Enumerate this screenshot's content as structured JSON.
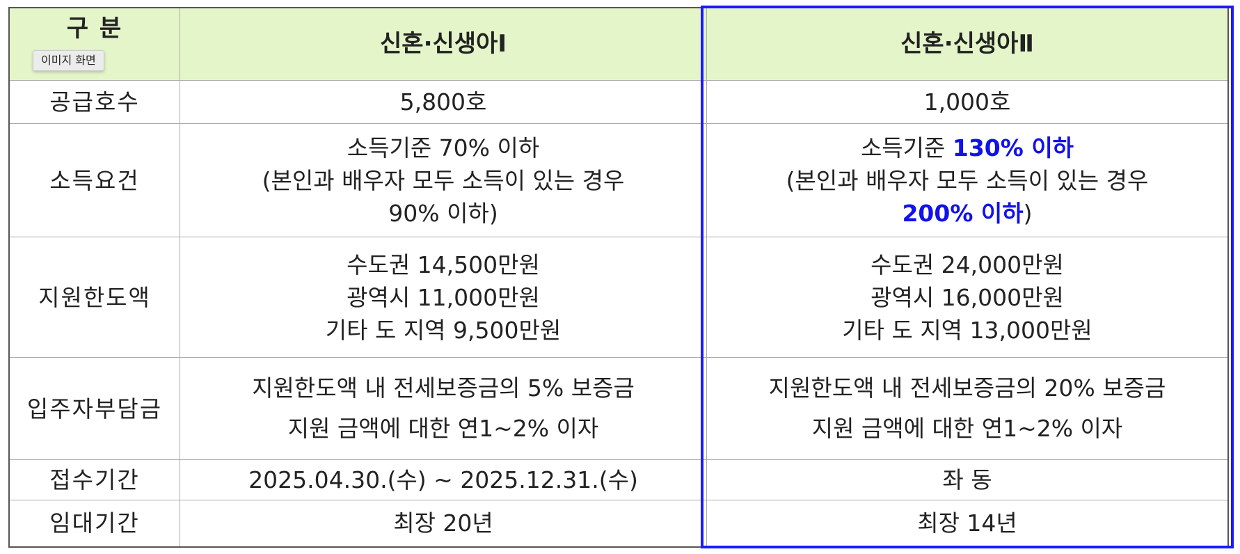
{
  "header": {
    "label": "구 분",
    "col1": "신혼·신생아Ⅰ",
    "col2": "신혼·신생아Ⅱ"
  },
  "tooltip": "이미지 화면",
  "rows": [
    {
      "label": "공급호수",
      "col1": [
        "5,800호"
      ],
      "col2": [
        "1,000호"
      ]
    },
    {
      "label": "소득요건",
      "col1": [
        "소득기준 70% 이하",
        "(본인과 배우자 모두 소득이 있는 경우",
        "90% 이하)"
      ],
      "col2_parts": {
        "a": "소득기준 ",
        "b": "130% 이하",
        "c": "(본인과 배우자 모두 소득이 있는 경우",
        "d": "200% 이하",
        "e": ")"
      }
    },
    {
      "label": "지원한도액",
      "col1": [
        "수도권 14,500만원",
        "광역시 11,000만원",
        "기타 도 지역 9,500만원"
      ],
      "col2": [
        "수도권 24,000만원",
        "광역시 16,000만원",
        "기타 도 지역 13,000만원"
      ]
    },
    {
      "label": "입주자부담금",
      "col1": [
        "지원한도액 내 전세보증금의 5% 보증금",
        "지원 금액에 대한 연1~2% 이자"
      ],
      "col2": [
        "지원한도액 내 전세보증금의 20% 보증금",
        "지원 금액에 대한 연1~2% 이자"
      ]
    },
    {
      "label": "접수기간",
      "col1": [
        "2025.04.30.(수) ~ 2025.12.31.(수)"
      ],
      "col2": [
        "좌 동"
      ]
    },
    {
      "label": "임대기간",
      "col1": [
        "최장 20년"
      ],
      "col2": [
        "최장 14년"
      ]
    }
  ],
  "colors": {
    "header_bg": "#e4f5c9",
    "highlight": "#1111ee",
    "box": "#1a1aff"
  }
}
